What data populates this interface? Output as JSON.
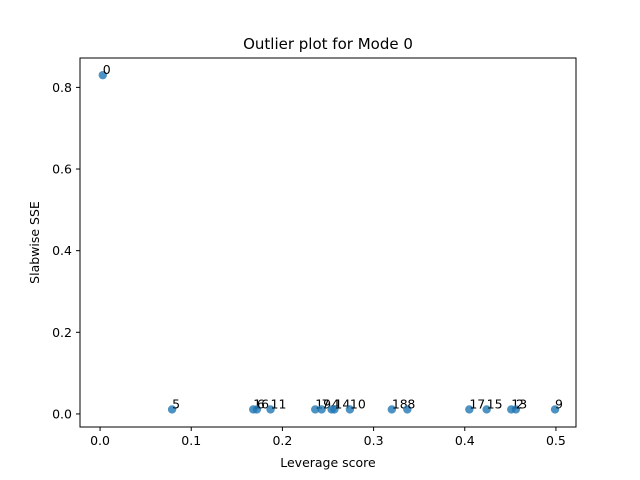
{
  "chart_data": {
    "type": "scatter",
    "title": "Outlier plot for Mode 0",
    "xlabel": "Leverage score",
    "ylabel": "Slabwise SSE",
    "xlim": [
      -0.022,
      0.522
    ],
    "ylim": [
      -0.032,
      0.872
    ],
    "xticks": [
      0.0,
      0.1,
      0.2,
      0.3,
      0.4,
      0.5
    ],
    "yticks": [
      0.0,
      0.2,
      0.4,
      0.6,
      0.8
    ],
    "xtick_labels": [
      "0.0",
      "0.1",
      "0.2",
      "0.3",
      "0.4",
      "0.5"
    ],
    "ytick_labels": [
      "0.0",
      "0.2",
      "0.4",
      "0.6",
      "0.8"
    ],
    "grid": false,
    "marker_color": "#1f77b4",
    "points": [
      {
        "label": "0",
        "x": 0.003,
        "y": 0.83
      },
      {
        "label": "5",
        "x": 0.079,
        "y": 0.011
      },
      {
        "label": "16",
        "x": 0.168,
        "y": 0.011
      },
      {
        "label": "6",
        "x": 0.172,
        "y": 0.011
      },
      {
        "label": "11",
        "x": 0.187,
        "y": 0.011
      },
      {
        "label": "19",
        "x": 0.236,
        "y": 0.011
      },
      {
        "label": "7",
        "x": 0.243,
        "y": 0.011
      },
      {
        "label": "4",
        "x": 0.254,
        "y": 0.011
      },
      {
        "label": "14",
        "x": 0.257,
        "y": 0.011
      },
      {
        "label": "10",
        "x": 0.274,
        "y": 0.011
      },
      {
        "label": "18",
        "x": 0.32,
        "y": 0.011
      },
      {
        "label": "8",
        "x": 0.337,
        "y": 0.011
      },
      {
        "label": "17",
        "x": 0.405,
        "y": 0.011
      },
      {
        "label": "15",
        "x": 0.424,
        "y": 0.011
      },
      {
        "label": "13",
        "x": 0.451,
        "y": 0.011
      },
      {
        "label": "2",
        "x": 0.456,
        "y": 0.011
      },
      {
        "label": "9",
        "x": 0.499,
        "y": 0.011
      }
    ]
  }
}
